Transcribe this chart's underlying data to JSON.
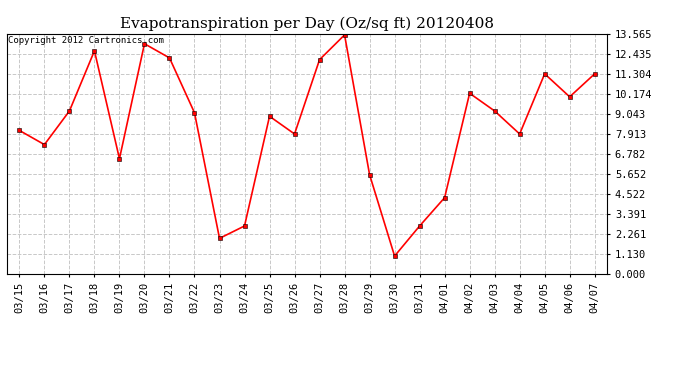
{
  "title": "Evapotranspiration per Day (Oz/sq ft) 20120408",
  "copyright": "Copyright 2012 Cartronics.com",
  "x_labels": [
    "03/15",
    "03/16",
    "03/17",
    "03/18",
    "03/19",
    "03/20",
    "03/21",
    "03/22",
    "03/23",
    "03/24",
    "03/25",
    "03/26",
    "03/27",
    "03/28",
    "03/29",
    "03/30",
    "03/31",
    "04/01",
    "04/02",
    "04/03",
    "04/04",
    "04/05",
    "04/06",
    "04/07"
  ],
  "y_values": [
    8.1,
    7.3,
    9.2,
    12.6,
    6.5,
    13.0,
    12.2,
    9.1,
    2.0,
    2.7,
    8.9,
    7.9,
    12.1,
    13.5,
    5.6,
    1.0,
    2.7,
    4.3,
    10.2,
    9.2,
    7.9,
    11.3,
    10.0,
    11.3
  ],
  "line_color": "#ff0000",
  "marker": "s",
  "marker_size": 2.5,
  "bg_color": "#ffffff",
  "plot_bg_color": "#ffffff",
  "grid_color": "#c8c8c8",
  "yticks": [
    0.0,
    1.13,
    2.261,
    3.391,
    4.522,
    5.652,
    6.782,
    7.913,
    9.043,
    10.174,
    11.304,
    12.435,
    13.565
  ],
  "ylim": [
    0.0,
    13.565
  ],
  "title_fontsize": 11,
  "tick_fontsize": 7.5,
  "copyright_fontsize": 6.5
}
